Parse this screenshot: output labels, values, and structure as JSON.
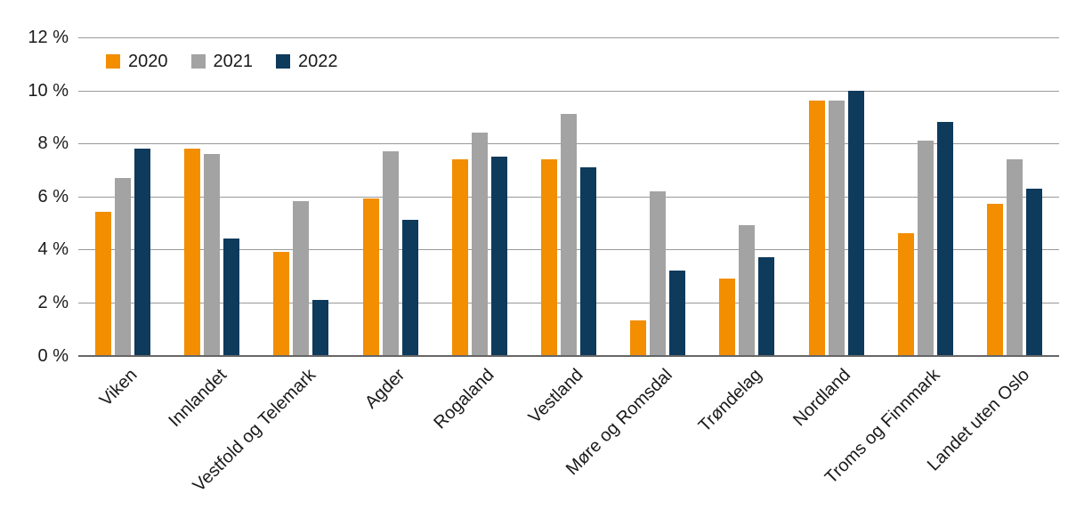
{
  "chart_data": {
    "type": "bar",
    "title": "",
    "xlabel": "",
    "ylabel": "",
    "ylim": [
      0,
      12
    ],
    "grid": "horizontal",
    "legend_position": "top-left",
    "categories": [
      "Viken",
      "Innlandet",
      "Vestfold og Telemark",
      "Agder",
      "Rogaland",
      "Vestland",
      "Møre og Romsdal",
      "Trøndelag",
      "Nordland",
      "Troms og Finnmark",
      "Landet uten Oslo"
    ],
    "series": [
      {
        "name": "2020",
        "color": "#F28E00",
        "values": [
          5.4,
          7.8,
          3.9,
          5.9,
          7.4,
          7.4,
          1.3,
          2.9,
          9.6,
          4.6,
          5.7
        ]
      },
      {
        "name": "2021",
        "color": "#A3A3A3",
        "values": [
          6.7,
          7.6,
          5.8,
          7.7,
          8.4,
          9.1,
          6.2,
          4.9,
          9.6,
          8.1,
          7.4
        ]
      },
      {
        "name": "2022",
        "color": "#0E3A5C",
        "values": [
          7.8,
          4.4,
          2.1,
          5.1,
          7.5,
          7.1,
          3.2,
          3.7,
          10.0,
          8.8,
          6.3
        ]
      }
    ],
    "y_ticks": [
      {
        "value": 0,
        "label": "0 %"
      },
      {
        "value": 2,
        "label": "2 %"
      },
      {
        "value": 4,
        "label": "4 %"
      },
      {
        "value": 6,
        "label": "6 %"
      },
      {
        "value": 8,
        "label": "8 %"
      },
      {
        "value": 10,
        "label": "10 %"
      },
      {
        "value": 12,
        "label": "12 %"
      }
    ]
  }
}
